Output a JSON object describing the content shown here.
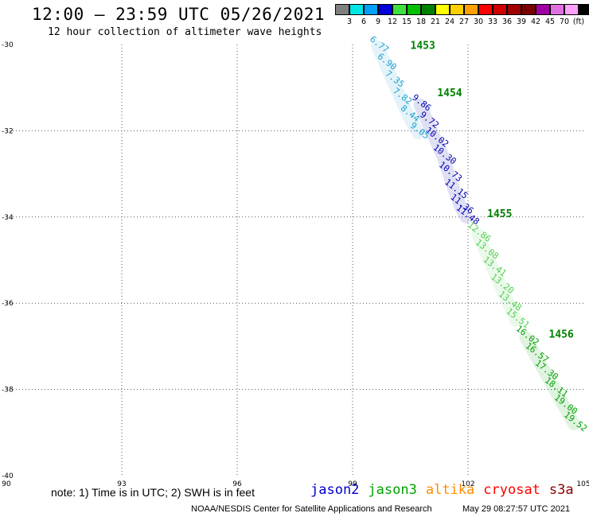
{
  "header": {
    "title": "12:00 – 23:59 UTC 05/26/2021",
    "subtitle": "12 hour collection of altimeter wave heights"
  },
  "colorbar": {
    "colors": [
      "#7f7f7f",
      "#00e6e6",
      "#00a0ff",
      "#0000d9",
      "#40e040",
      "#00c000",
      "#008000",
      "#ffff00",
      "#ffd000",
      "#ffa000",
      "#ff0000",
      "#d00000",
      "#a00000",
      "#7a0000",
      "#a000a0",
      "#e070e0",
      "#ffa0ff",
      "#000000"
    ],
    "labels": [
      "3",
      "6",
      "9",
      "12",
      "15",
      "18",
      "21",
      "24",
      "27",
      "30",
      "33",
      "36",
      "39",
      "42",
      "45",
      "70",
      "(ft)"
    ]
  },
  "chart_data": {
    "type": "scatter",
    "title": "12:00 – 23:59 UTC 05/26/2021",
    "subtitle": "12 hour collection of altimeter wave heights",
    "xlim": [
      90,
      105
    ],
    "ylim": [
      -40,
      -30
    ],
    "x_ticks": [
      "90",
      "93",
      "96",
      "99",
      "102",
      "105"
    ],
    "y_ticks": [
      "-30",
      "-32",
      "-34",
      "-36",
      "-38",
      "-40"
    ],
    "grid": true,
    "tracks": [
      {
        "satellite": "jason3",
        "color": "#008000",
        "time_label": "1453",
        "x": 100.5,
        "y": -30.1
      },
      {
        "satellite": "jason3",
        "color": "#008000",
        "time_label": "1454",
        "x": 101.2,
        "y": -31.2
      },
      {
        "satellite": "jason3",
        "color": "#008000",
        "time_label": "1455",
        "x": 102.5,
        "y": -34.0
      },
      {
        "satellite": "jason3",
        "color": "#008000",
        "time_label": "1456",
        "x": 104.1,
        "y": -36.8
      }
    ],
    "series": [
      {
        "name": "jason2",
        "color": "#0000b0",
        "points": [
          {
            "x": 100.75,
            "y": -31.4,
            "v": "9.86"
          },
          {
            "x": 100.95,
            "y": -31.8,
            "v": "9.72"
          },
          {
            "x": 101.15,
            "y": -32.2,
            "v": "10.02"
          },
          {
            "x": 101.35,
            "y": -32.6,
            "v": "10.30"
          },
          {
            "x": 101.5,
            "y": -33.0,
            "v": "10.73"
          },
          {
            "x": 101.65,
            "y": -33.4,
            "v": "11.15"
          },
          {
            "x": 101.8,
            "y": -33.75,
            "v": "11.36"
          },
          {
            "x": 101.95,
            "y": -34.0,
            "v": "11.48"
          }
        ]
      },
      {
        "name": "",
        "color": "#1ea0d0",
        "points": [
          {
            "x": 99.65,
            "y": -30.05,
            "v": "6.77"
          },
          {
            "x": 99.85,
            "y": -30.45,
            "v": "6.90"
          },
          {
            "x": 100.05,
            "y": -30.85,
            "v": "7.35"
          },
          {
            "x": 100.25,
            "y": -31.25,
            "v": "7.82"
          },
          {
            "x": 100.45,
            "y": -31.65,
            "v": "8.44"
          },
          {
            "x": 100.7,
            "y": -32.05,
            "v": "9.05"
          }
        ]
      },
      {
        "name": "",
        "color": "#50d050",
        "points": [
          {
            "x": 102.25,
            "y": -34.4,
            "v": "12.86"
          },
          {
            "x": 102.45,
            "y": -34.8,
            "v": "13.08"
          },
          {
            "x": 102.65,
            "y": -35.2,
            "v": "13.41"
          },
          {
            "x": 102.85,
            "y": -35.6,
            "v": "13.20"
          },
          {
            "x": 103.05,
            "y": -36.0,
            "v": "13.48"
          },
          {
            "x": 103.25,
            "y": -36.4,
            "v": "15.51"
          }
        ]
      },
      {
        "name": "jason3",
        "color": "#00a000",
        "points": [
          {
            "x": 103.5,
            "y": -36.8,
            "v": "16.02"
          },
          {
            "x": 103.75,
            "y": -37.2,
            "v": "16.57"
          },
          {
            "x": 104.0,
            "y": -37.6,
            "v": "17.30"
          },
          {
            "x": 104.25,
            "y": -38.0,
            "v": "18.11"
          },
          {
            "x": 104.5,
            "y": -38.4,
            "v": "19.00"
          },
          {
            "x": 104.75,
            "y": -38.8,
            "v": "19.52"
          }
        ]
      }
    ]
  },
  "footer": {
    "note": "note: 1) Time is in UTC; 2) SWH is in feet",
    "legend": [
      {
        "name": "jason2",
        "color": "#0000cc"
      },
      {
        "name": "jason3",
        "color": "#00a000"
      },
      {
        "name": "altika",
        "color": "#ff8c00"
      },
      {
        "name": "cryosat",
        "color": "#ff0000"
      },
      {
        "name": "s3a",
        "color": "#8b0000"
      }
    ],
    "credit": "NOAA/NESDIS Center for Satellite Applications and Research",
    "timestamp": "May 29 08:27:57 UTC 2021"
  }
}
